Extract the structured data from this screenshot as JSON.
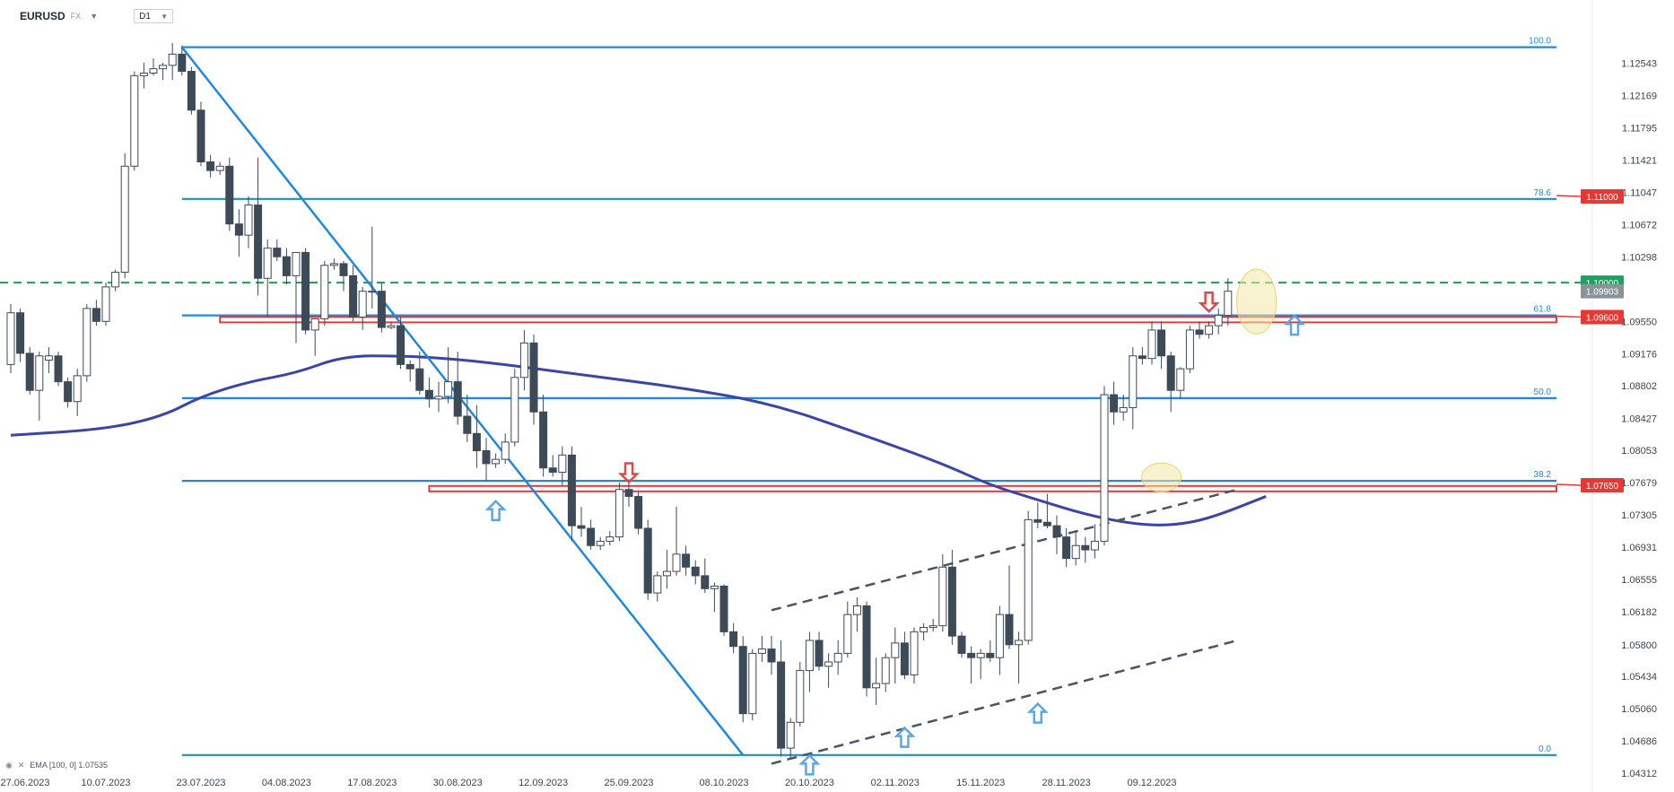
{
  "header": {
    "symbol": "EURUSD",
    "exchange": "FX",
    "timeframe": "D1",
    "caret_icon": "chevron-down-icon"
  },
  "indicator_legend": {
    "label": "EMA [100, 0] 1.07535",
    "icons": [
      "eye-icon",
      "close-icon"
    ]
  },
  "colors": {
    "bull_body": "#ffffff",
    "bear_body": "#3d4a58",
    "wick": "#3d4a58",
    "fib_line": "#1e88e5",
    "fib_label": "#1e88e5",
    "ema": "#3a45a8",
    "zone": "#e53935",
    "dashed_green": "#16a34a",
    "channel": "#4a5563",
    "up_arrow": "#5aa7e8",
    "down_arrow": "#e04848",
    "highlight": "#f3e8a5",
    "badge_red": "#e53935",
    "badge_green": "#1aa260",
    "badge_gray": "#8a939c"
  },
  "chart_data": {
    "type": "candlestick",
    "symbol": "EURUSD",
    "timeframe": "D1",
    "x_labels": [
      "27.06.2023",
      "10.07.2023",
      "23.07.2023",
      "04.08.2023",
      "17.08.2023",
      "30.08.2023",
      "12.09.2023",
      "25.09.2023",
      "08.10.2023",
      "20.10.2023",
      "02.11.2023",
      "15.11.2023",
      "28.11.2023",
      "09.12.2023"
    ],
    "y_ticks": [
      "1.12543",
      "1.12169",
      "1.11795",
      "1.11421",
      "1.11047",
      "1.10672",
      "1.10298",
      "1.09550",
      "1.09176",
      "1.08802",
      "1.08427",
      "1.08053",
      "1.07679",
      "1.07305",
      "1.06931",
      "1.06555",
      "1.06182",
      "1.05800",
      "1.05434",
      "1.05060",
      "1.04686",
      "1.04312"
    ],
    "ylim": [
      1.0431,
      1.1282
    ],
    "first_candle_date": "2023-06-26",
    "candles": [
      [
        1.0905,
        1.0975,
        1.0895,
        1.0965
      ],
      [
        1.0965,
        1.097,
        1.0908,
        1.0918
      ],
      [
        1.0918,
        1.0925,
        1.087,
        1.0875
      ],
      [
        1.0875,
        1.092,
        1.084,
        1.0915
      ],
      [
        1.091,
        1.0925,
        1.0895,
        1.0915
      ],
      [
        1.0915,
        1.092,
        1.088,
        1.0885
      ],
      [
        1.0885,
        1.089,
        1.0855,
        1.0862
      ],
      [
        1.0862,
        1.09,
        1.0845,
        1.0892
      ],
      [
        1.0892,
        1.0975,
        1.0885,
        1.097
      ],
      [
        1.097,
        1.098,
        1.095,
        1.0955
      ],
      [
        1.0955,
        1.1,
        1.095,
        1.0995
      ],
      [
        1.0995,
        1.1015,
        1.099,
        1.1012
      ],
      [
        1.1012,
        1.115,
        1.1005,
        1.1135
      ],
      [
        1.1135,
        1.1245,
        1.113,
        1.124
      ],
      [
        1.124,
        1.1255,
        1.1225,
        1.1243
      ],
      [
        1.1243,
        1.126,
        1.124,
        1.1248
      ],
      [
        1.1248,
        1.1255,
        1.1235,
        1.1252
      ],
      [
        1.1252,
        1.1278,
        1.1235,
        1.1265
      ],
      [
        1.1265,
        1.1275,
        1.124,
        1.1245
      ],
      [
        1.1245,
        1.125,
        1.1195,
        1.12
      ],
      [
        1.12,
        1.121,
        1.1135,
        1.114
      ],
      [
        1.114,
        1.1148,
        1.1122,
        1.113
      ],
      [
        1.113,
        1.114,
        1.1125,
        1.1135
      ],
      [
        1.1135,
        1.1145,
        1.106,
        1.1068
      ],
      [
        1.1068,
        1.1085,
        1.103,
        1.1055
      ],
      [
        1.1055,
        1.11,
        1.104,
        1.109
      ],
      [
        1.109,
        1.1145,
        1.0985,
        1.1005
      ],
      [
        1.1005,
        1.105,
        1.096,
        1.104
      ],
      [
        1.104,
        1.105,
        1.1025,
        1.103
      ],
      [
        1.103,
        1.104,
        1.0998,
        1.1008
      ],
      [
        1.1008,
        1.1032,
        1.093,
        1.1035
      ],
      [
        1.1035,
        1.104,
        1.094,
        1.0945
      ],
      [
        1.0945,
        1.0955,
        1.0915,
        1.0958
      ],
      [
        1.0958,
        1.1025,
        1.095,
        1.102
      ],
      [
        1.102,
        1.1028,
        1.1015,
        1.1022
      ],
      [
        1.1022,
        1.1025,
        1.099,
        1.1008
      ],
      [
        1.1008,
        1.102,
        1.0955,
        1.096
      ],
      [
        1.096,
        1.0995,
        1.0945,
        1.099
      ],
      [
        1.099,
        1.1065,
        1.097,
        1.099
      ],
      [
        1.099,
        1.1,
        1.0942,
        1.0948
      ],
      [
        1.0948,
        1.0955,
        1.0946,
        1.095
      ],
      [
        1.095,
        1.096,
        1.09,
        1.0905
      ],
      [
        1.0905,
        1.091,
        1.0885,
        1.09
      ],
      [
        1.09,
        1.092,
        1.087,
        1.0875
      ],
      [
        1.0875,
        1.089,
        1.0855,
        1.0865
      ],
      [
        1.0865,
        1.0885,
        1.085,
        1.0868
      ],
      [
        1.0868,
        1.0925,
        1.086,
        1.0885
      ],
      [
        1.0885,
        1.092,
        1.0835,
        1.0845
      ],
      [
        1.0845,
        1.087,
        1.0815,
        1.0825
      ],
      [
        1.0825,
        1.0858,
        1.0785,
        1.0805
      ],
      [
        1.0805,
        1.082,
        1.077,
        1.079
      ],
      [
        1.079,
        1.0802,
        1.0785,
        1.0795
      ],
      [
        1.0795,
        1.0825,
        1.079,
        1.0815
      ],
      [
        1.0815,
        1.09,
        1.081,
        1.089
      ],
      [
        1.089,
        1.0945,
        1.0875,
        1.093
      ],
      [
        1.093,
        1.094,
        1.0835,
        1.085
      ],
      [
        1.085,
        1.087,
        1.0775,
        1.0785
      ],
      [
        1.0785,
        1.08,
        1.0775,
        1.078
      ],
      [
        1.078,
        1.081,
        1.0765,
        1.08
      ],
      [
        1.08,
        1.081,
        1.07,
        1.0718
      ],
      [
        1.0718,
        1.074,
        1.0705,
        1.0715
      ],
      [
        1.0715,
        1.0725,
        1.069,
        1.0695
      ],
      [
        1.0695,
        1.0705,
        1.069,
        1.07
      ],
      [
        1.07,
        1.0712,
        1.0695,
        1.0705
      ],
      [
        1.0705,
        1.0768,
        1.07,
        1.076
      ],
      [
        1.076,
        1.0772,
        1.074,
        1.0752
      ],
      [
        1.0752,
        1.0757,
        1.0708,
        1.0715
      ],
      [
        1.0715,
        1.0725,
        1.0632,
        1.064
      ],
      [
        1.064,
        1.0665,
        1.063,
        1.066
      ],
      [
        1.066,
        1.069,
        1.0645,
        1.0665
      ],
      [
        1.0665,
        1.074,
        1.066,
        1.0685
      ],
      [
        1.0685,
        1.0695,
        1.066,
        1.067
      ],
      [
        1.067,
        1.0678,
        1.065,
        1.066
      ],
      [
        1.066,
        1.068,
        1.064,
        1.0645
      ],
      [
        1.0645,
        1.0652,
        1.0618,
        1.0648
      ],
      [
        1.0648,
        1.065,
        1.059,
        1.0595
      ],
      [
        1.0595,
        1.0605,
        1.057,
        1.0578
      ],
      [
        1.0578,
        1.059,
        1.049,
        1.05
      ],
      [
        1.05,
        1.0575,
        1.0492,
        1.057
      ],
      [
        1.057,
        1.059,
        1.056,
        1.0575
      ],
      [
        1.0575,
        1.059,
        1.0545,
        1.056
      ],
      [
        1.056,
        1.0585,
        1.045,
        1.046
      ],
      [
        1.046,
        1.0495,
        1.0448,
        1.049
      ],
      [
        1.049,
        1.056,
        1.0485,
        1.055
      ],
      [
        1.055,
        1.0595,
        1.0525,
        1.0585
      ],
      [
        1.0585,
        1.0595,
        1.055,
        1.0555
      ],
      [
        1.0555,
        1.057,
        1.053,
        1.056
      ],
      [
        1.056,
        1.0585,
        1.0545,
        1.057
      ],
      [
        1.057,
        1.063,
        1.0565,
        1.0615
      ],
      [
        1.0615,
        1.0635,
        1.0595,
        1.0625
      ],
      [
        1.0625,
        1.063,
        1.052,
        1.053
      ],
      [
        1.053,
        1.0565,
        1.051,
        1.0535
      ],
      [
        1.0535,
        1.057,
        1.0525,
        1.0565
      ],
      [
        1.0565,
        1.06,
        1.0535,
        1.0582
      ],
      [
        1.0582,
        1.0595,
        1.054,
        1.0545
      ],
      [
        1.0545,
        1.06,
        1.0535,
        1.0595
      ],
      [
        1.0595,
        1.0605,
        1.0585,
        1.06
      ],
      [
        1.06,
        1.061,
        1.0595,
        1.0602
      ],
      [
        1.0602,
        1.0685,
        1.0595,
        1.067
      ],
      [
        1.067,
        1.069,
        1.058,
        1.059
      ],
      [
        1.059,
        1.0595,
        1.0565,
        1.057
      ],
      [
        1.057,
        1.0578,
        1.0535,
        1.0565
      ],
      [
        1.0565,
        1.0575,
        1.054,
        1.057
      ],
      [
        1.057,
        1.0585,
        1.056,
        1.0565
      ],
      [
        1.0565,
        1.0625,
        1.0545,
        1.0615
      ],
      [
        1.0615,
        1.0672,
        1.0575,
        1.058
      ],
      [
        1.058,
        1.0595,
        1.0535,
        1.0585
      ],
      [
        1.0585,
        1.0735,
        1.058,
        1.0725
      ],
      [
        1.0725,
        1.0745,
        1.0715,
        1.0722
      ],
      [
        1.0722,
        1.0755,
        1.0715,
        1.0718
      ],
      [
        1.0718,
        1.073,
        1.0685,
        1.0705
      ],
      [
        1.0705,
        1.0715,
        1.067,
        1.068
      ],
      [
        1.068,
        1.0712,
        1.0672,
        1.0695
      ],
      [
        1.0695,
        1.0705,
        1.0675,
        1.069
      ],
      [
        1.069,
        1.072,
        1.068,
        1.07
      ],
      [
        1.07,
        1.088,
        1.0695,
        1.087
      ],
      [
        1.087,
        1.0885,
        1.0835,
        1.085
      ],
      [
        1.085,
        1.087,
        1.084,
        1.0855
      ],
      [
        1.0855,
        1.0925,
        1.083,
        1.0915
      ],
      [
        1.0915,
        1.0925,
        1.0905,
        1.0912
      ],
      [
        1.0912,
        1.0955,
        1.0905,
        1.0945
      ],
      [
        1.0945,
        1.0955,
        1.09,
        1.0915
      ],
      [
        1.0915,
        1.092,
        1.085,
        1.0875
      ],
      [
        1.0875,
        1.0902,
        1.0865,
        1.09
      ],
      [
        1.09,
        1.095,
        1.0895,
        1.0945
      ],
      [
        1.0945,
        1.0955,
        1.0935,
        1.094
      ],
      [
        1.094,
        1.0955,
        1.0935,
        1.095
      ],
      [
        1.095,
        1.097,
        1.094,
        1.0962
      ],
      [
        1.0962,
        1.1005,
        1.095,
        1.099
      ]
    ],
    "ema": {
      "name": "EMA [100, 0]",
      "last_value": 1.07535,
      "points": [
        [
          0,
          1.0823
        ],
        [
          10,
          1.083
        ],
        [
          16,
          1.0845
        ],
        [
          20,
          1.0868
        ],
        [
          25,
          1.0885
        ],
        [
          30,
          1.0895
        ],
        [
          35,
          1.0915
        ],
        [
          41,
          1.0915
        ],
        [
          46,
          1.0912
        ],
        [
          52,
          1.0905
        ],
        [
          60,
          1.0893
        ],
        [
          70,
          1.0879
        ],
        [
          80,
          1.086
        ],
        [
          90,
          1.0822
        ],
        [
          98,
          1.079
        ],
        [
          103,
          1.0765
        ],
        [
          108,
          1.0748
        ],
        [
          113,
          1.0731
        ],
        [
          118,
          1.072
        ],
        [
          122,
          1.0718
        ],
        [
          126,
          1.0726
        ],
        [
          132,
          1.0752
        ]
      ]
    },
    "fibonacci": {
      "levels": [
        {
          "label": "100.0",
          "value": 1.1273
        },
        {
          "label": "78.6",
          "value": 1.1097
        },
        {
          "label": "61.8",
          "value": 1.0962
        },
        {
          "label": "50.0",
          "value": 1.0866
        },
        {
          "label": "38.2",
          "value": 1.077
        },
        {
          "label": "0.0",
          "value": 1.0452
        }
      ],
      "start_index": 18
    },
    "trendline": {
      "from": [
        18,
        1.1273
      ],
      "to": [
        77,
        1.0452
      ]
    },
    "channel": {
      "upper": {
        "from": [
          80,
          1.062
        ],
        "to": [
          129,
          1.076
        ]
      },
      "lower": {
        "from": [
          80,
          1.0442
        ],
        "to": [
          129,
          1.0585
        ]
      }
    },
    "zones": [
      {
        "value": 1.0957,
        "from_index": 22
      },
      {
        "value": 1.0761,
        "from_index": 44
      }
    ],
    "dashed_level": {
      "value": 1.1
    },
    "arrows": [
      {
        "dir": "up",
        "index": 51,
        "value": 1.0735
      },
      {
        "dir": "down",
        "index": 65,
        "value": 1.078
      },
      {
        "dir": "up",
        "index": 94,
        "value": 1.0472
      },
      {
        "dir": "up",
        "index": 108,
        "value": 1.05
      },
      {
        "dir": "down",
        "index": 126,
        "value": 1.0978
      },
      {
        "dir": "up",
        "index": 135,
        "value": 1.095
      },
      {
        "dir": "up",
        "index": 84,
        "value": 1.044
      }
    ],
    "highlights": [
      {
        "index": 121,
        "value": 1.0774
      },
      {
        "index": 131,
        "value": 1.0978
      }
    ],
    "price_badges": [
      {
        "label": "1.11000",
        "value": 1.11,
        "color": "red"
      },
      {
        "label": "1.10000",
        "value": 1.1,
        "color": "green"
      },
      {
        "label": "1.09903",
        "value": 1.099,
        "color": "gray"
      },
      {
        "label": "1.09600",
        "value": 1.096,
        "color": "red"
      },
      {
        "label": "1.07650",
        "value": 1.0765,
        "color": "red"
      }
    ]
  }
}
